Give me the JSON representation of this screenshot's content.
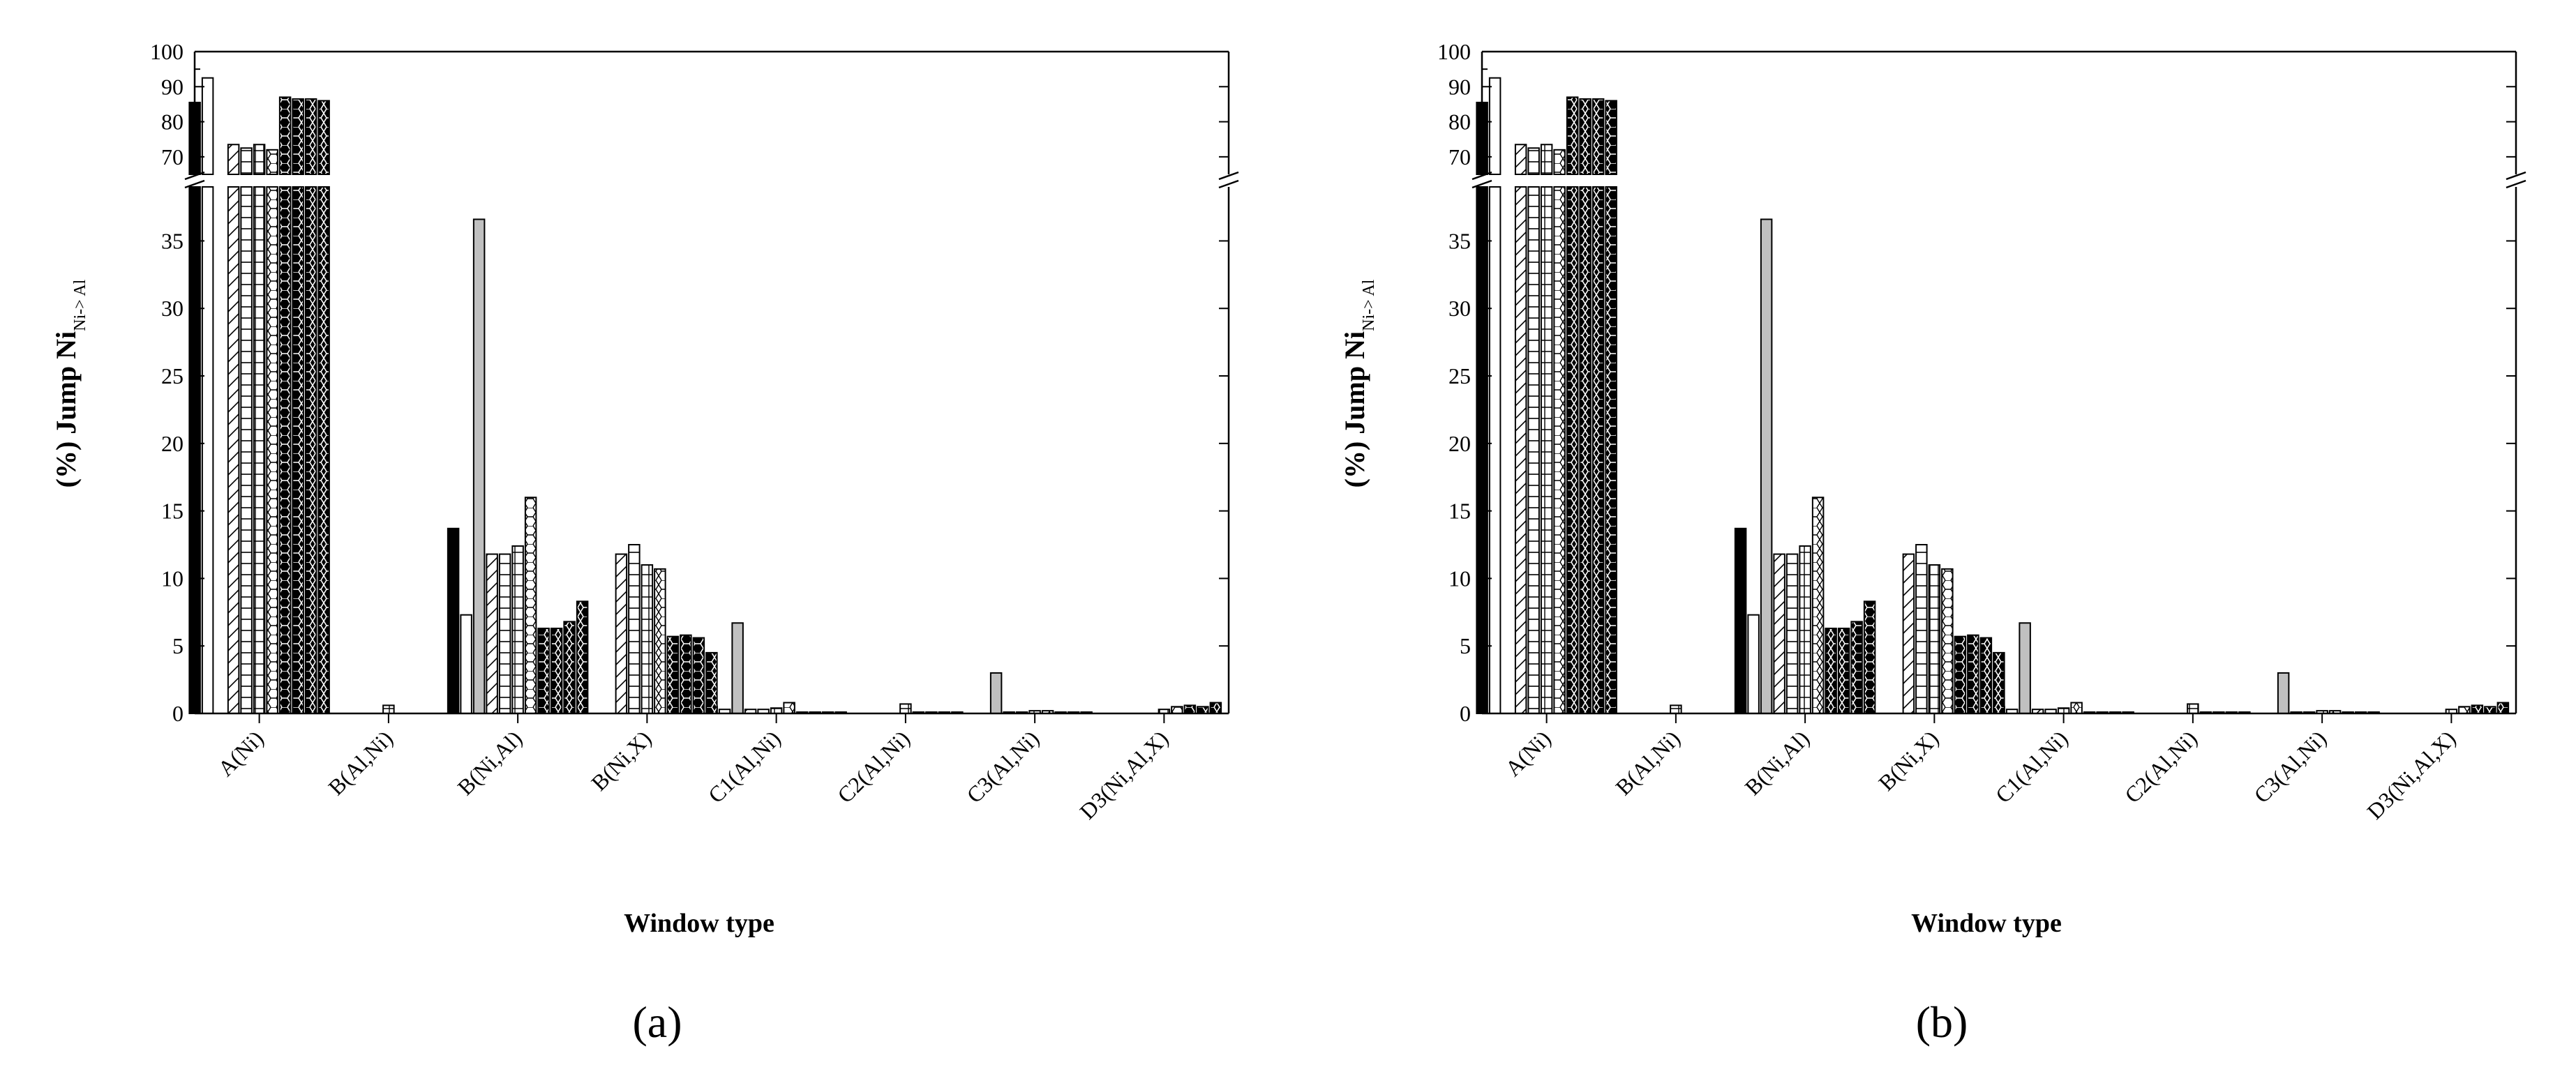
{
  "chart_data": [
    {
      "type": "bar",
      "panel_label": "(a)",
      "xlabel": "Window type",
      "ylabel": {
        "main": "(%) Jump  Ni",
        "subscript": "Ni-> Al"
      },
      "broken_axis": true,
      "ylim_lower": [
        0,
        39
      ],
      "ylim_upper": [
        65,
        100
      ],
      "yticks_lower": [
        "0",
        "5",
        "10",
        "15",
        "20",
        "25",
        "30",
        "35"
      ],
      "yticks_upper": [
        "70",
        "80",
        "90",
        "100"
      ],
      "grid": false,
      "categories": [
        "A(Ni)",
        "B(Al,Ni)",
        "B(Ni,Al)",
        "B(Ni,X)",
        "C1(Al,Ni)",
        "C2(Al,Ni)",
        "C3(Al,Ni)",
        "D3(Ni,Al,X)"
      ],
      "series": [
        {
          "values": [
            85.5,
            0,
            13.7,
            0,
            0.5,
            0,
            0,
            0
          ],
          "fill": "#000000",
          "pattern": "none"
        },
        {
          "values": [
            92.5,
            0,
            7.3,
            0,
            0.3,
            0,
            0,
            0
          ],
          "fill": "#ffffff",
          "pattern": "none"
        },
        {
          "values": [
            0,
            0,
            36.6,
            0,
            6.7,
            0,
            3.0,
            0
          ],
          "fill": "#c0c0c0",
          "pattern": "none"
        },
        {
          "values": [
            73.5,
            0,
            11.8,
            11.8,
            0.3,
            0,
            0.1,
            0
          ],
          "fill": "#ffffff",
          "pattern": "diag"
        },
        {
          "values": [
            72.5,
            0,
            11.8,
            12.5,
            0.3,
            0,
            0.1,
            0
          ],
          "fill": "#ffffff",
          "pattern": "hlines"
        },
        {
          "values": [
            73.5,
            0.6,
            12.4,
            11.0,
            0.4,
            0.7,
            0.2,
            0.3
          ],
          "fill": "#ffffff",
          "pattern": "grid"
        },
        {
          "values": [
            72.0,
            0,
            16.0,
            10.7,
            0.8,
            0.1,
            0.2,
            0.5
          ],
          "fill": "#ffffff",
          "pattern": "hex"
        },
        {
          "values": [
            87.0,
            0,
            6.3,
            5.7,
            0.1,
            0.1,
            0.1,
            0.6
          ],
          "fill": "#000000",
          "pattern": "whitehex"
        },
        {
          "values": [
            86.5,
            0,
            6.3,
            5.8,
            0.1,
            0.1,
            0.1,
            0.5
          ],
          "fill": "#000000",
          "pattern": "whitehex"
        },
        {
          "values": [
            86.5,
            0,
            6.8,
            5.6,
            0.1,
            0.1,
            0.1,
            0.8
          ],
          "fill": "#000000",
          "pattern": "whitehex"
        },
        {
          "values": [
            86.0,
            0,
            8.3,
            4.5,
            0.1,
            0,
            0,
            0
          ],
          "fill": "#000000",
          "pattern": "whitehex"
        }
      ]
    },
    {
      "type": "bar",
      "panel_label": "(b)",
      "xlabel": "Window type",
      "ylabel": {
        "main": "(%) Jump  Ni",
        "subscript": "Ni-> Al"
      },
      "broken_axis": true,
      "ylim_lower": [
        0,
        39
      ],
      "ylim_upper": [
        65,
        100
      ],
      "yticks_lower": [
        "0",
        "5",
        "10",
        "15",
        "20",
        "25",
        "30",
        "35"
      ],
      "yticks_upper": [
        "70",
        "80",
        "90",
        "100"
      ],
      "grid": false,
      "categories": [
        "A(Ni)",
        "B(Al,Ni)",
        "B(Ni,Al)",
        "B(Ni,X)",
        "C1(Al,Ni)",
        "C2(Al,Ni)",
        "C3(Al,Ni)",
        "D3(Ni,Al,X)"
      ],
      "series": [
        {
          "values": [
            85.5,
            0,
            13.7,
            0,
            0.5,
            0,
            0,
            0
          ],
          "fill": "#000000",
          "pattern": "none"
        },
        {
          "values": [
            92.5,
            0,
            7.3,
            0,
            0.3,
            0,
            0,
            0
          ],
          "fill": "#ffffff",
          "pattern": "none"
        },
        {
          "values": [
            0,
            0,
            36.6,
            0,
            6.7,
            0,
            3.0,
            0
          ],
          "fill": "#c0c0c0",
          "pattern": "none"
        },
        {
          "values": [
            73.5,
            0,
            11.8,
            11.8,
            0.3,
            0,
            0.1,
            0
          ],
          "fill": "#ffffff",
          "pattern": "diag"
        },
        {
          "values": [
            72.5,
            0,
            11.8,
            12.5,
            0.3,
            0,
            0.1,
            0
          ],
          "fill": "#ffffff",
          "pattern": "hlines"
        },
        {
          "values": [
            73.5,
            0.6,
            12.4,
            11.0,
            0.4,
            0.7,
            0.2,
            0.3
          ],
          "fill": "#ffffff",
          "pattern": "grid"
        },
        {
          "values": [
            72.0,
            0,
            16.0,
            10.7,
            0.8,
            0.1,
            0.2,
            0.5
          ],
          "fill": "#ffffff",
          "pattern": "hex"
        },
        {
          "values": [
            87.0,
            0,
            6.3,
            5.7,
            0.1,
            0.1,
            0.1,
            0.6
          ],
          "fill": "#000000",
          "pattern": "whitehex"
        },
        {
          "values": [
            86.5,
            0,
            6.3,
            5.8,
            0.1,
            0.1,
            0.1,
            0.5
          ],
          "fill": "#000000",
          "pattern": "whitehex"
        },
        {
          "values": [
            86.5,
            0,
            6.8,
            5.6,
            0.1,
            0.1,
            0.1,
            0.8
          ],
          "fill": "#000000",
          "pattern": "whitehex"
        },
        {
          "values": [
            86.0,
            0,
            8.3,
            4.5,
            0.1,
            0,
            0,
            0
          ],
          "fill": "#000000",
          "pattern": "whitehex"
        }
      ]
    }
  ]
}
